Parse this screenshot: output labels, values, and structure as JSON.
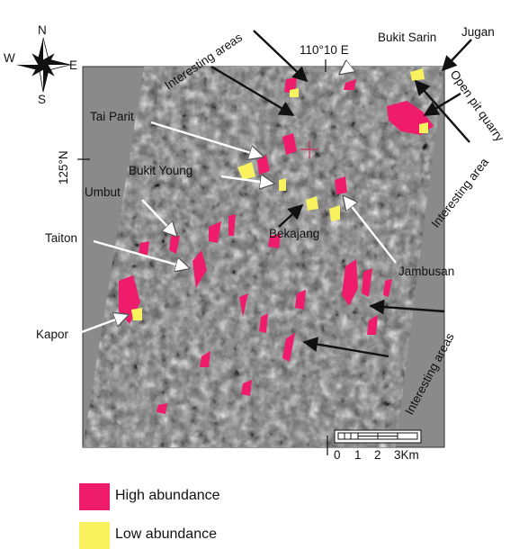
{
  "compass": {
    "north": "N",
    "south": "S",
    "east": "E",
    "west": "W"
  },
  "coords": {
    "longitude": "110°10 E",
    "latitude": "125°N"
  },
  "annotations": {
    "interesting_areas_top": "Interesting areas",
    "bukit_sarin": "Bukit Sarin",
    "jugan": "Jugan",
    "open_pit_quarry": "Open pit quarry",
    "interesting_area_right": "Interesting area",
    "tai_parit": "Tai Parit",
    "bukit_young": "Bukit Young",
    "umbut": "Umbut",
    "taiton": "Taiton",
    "bekajang": "Bekajang",
    "jambusan": "Jambusan",
    "kapor": "Kapor",
    "interesting_areas_bottom": "Interesting areas"
  },
  "scalebar": {
    "ticks": [
      "0",
      "1",
      "2",
      "3Km"
    ]
  },
  "legend": [
    {
      "label": "High abundance",
      "color": "#ee1c6a"
    },
    {
      "label": "Low abundance",
      "color": "#f7f25e"
    }
  ]
}
